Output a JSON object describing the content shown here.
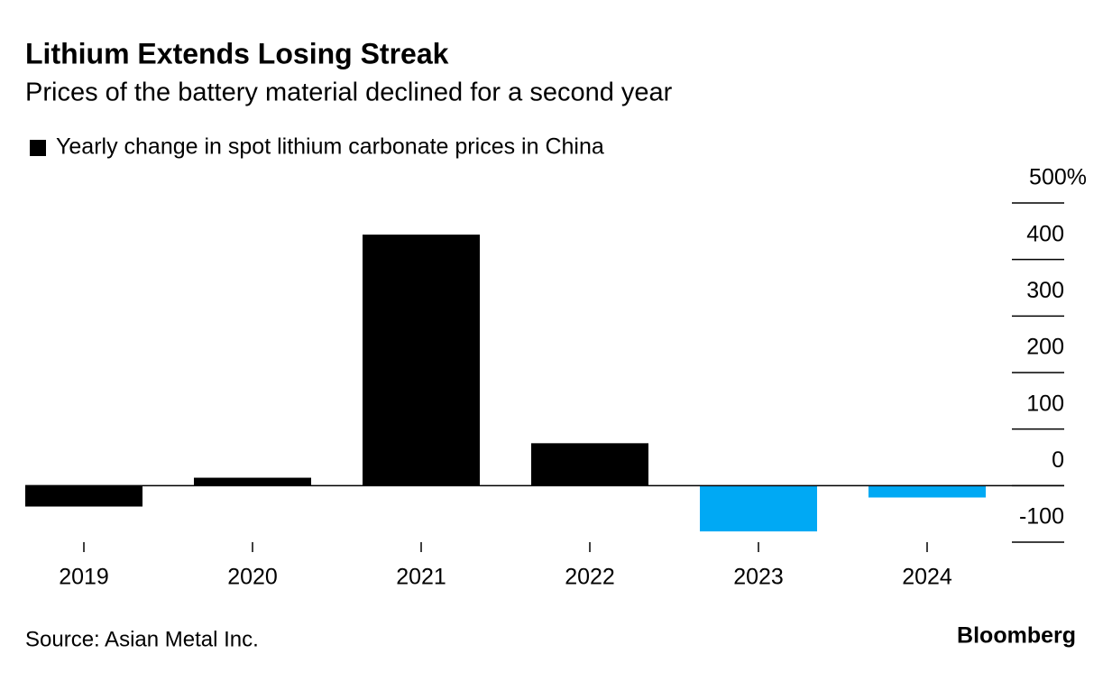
{
  "chart_data": {
    "type": "bar",
    "title": "Lithium Extends Losing Streak",
    "subtitle": "Prices of the battery material declined for a second year",
    "categories": [
      "2019",
      "2020",
      "2021",
      "2022",
      "2023",
      "2024"
    ],
    "series": [
      {
        "name": "Yearly change in spot lithium carbonate prices in China",
        "color": "#000000",
        "values": [
          -37,
          14,
          444,
          75,
          -81,
          -21
        ],
        "colors": [
          "#000000",
          "#000000",
          "#000000",
          "#000000",
          "#00a9f4",
          "#00a9f4"
        ]
      }
    ],
    "ylim": [
      -100,
      500
    ],
    "yticks": [
      -100,
      0,
      100,
      200,
      300,
      400,
      {
        "value": 500,
        "label": "500%"
      }
    ],
    "y_axis_side": "right",
    "source": "Source: Asian Metal Inc.",
    "brand": "Bloomberg"
  }
}
